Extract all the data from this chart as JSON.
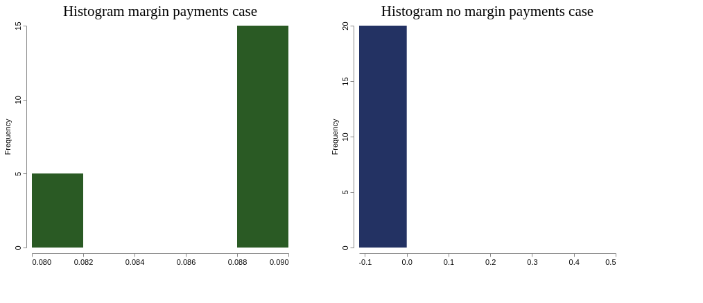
{
  "chart_data": [
    {
      "type": "histogram",
      "title": "Histogram margin payments case",
      "ylabel": "Frequency",
      "color": "#2a5a24",
      "bins": [
        0.08,
        0.082,
        0.084,
        0.086,
        0.088,
        0.09
      ],
      "values": [
        5,
        0,
        0,
        0,
        15
      ],
      "xlim": [
        0.08,
        0.09
      ],
      "ylim": [
        0,
        15
      ],
      "xticks": [
        {
          "value": 0.08,
          "label": "0.080"
        },
        {
          "value": 0.082,
          "label": "0.082"
        },
        {
          "value": 0.084,
          "label": "0.084"
        },
        {
          "value": 0.086,
          "label": "0.086"
        },
        {
          "value": 0.088,
          "label": "0.088"
        },
        {
          "value": 0.09,
          "label": "0.090"
        }
      ],
      "yticks": [
        0,
        5,
        10,
        15
      ]
    },
    {
      "type": "histogram",
      "title": "Histogram no margin payments case",
      "ylabel": "Frequency",
      "color": "#233263",
      "bins": [
        -0.114,
        0.0
      ],
      "values": [
        20
      ],
      "xlim": [
        -0.114,
        0.5
      ],
      "ylim": [
        0,
        20
      ],
      "xticks": [
        {
          "value": -0.1,
          "label": "-0.1"
        },
        {
          "value": 0.0,
          "label": "0.0"
        },
        {
          "value": 0.1,
          "label": "0.1"
        },
        {
          "value": 0.2,
          "label": "0.2"
        },
        {
          "value": 0.3,
          "label": "0.3"
        },
        {
          "value": 0.4,
          "label": "0.4"
        },
        {
          "value": 0.5,
          "label": "0.5"
        }
      ],
      "yticks": [
        0,
        5,
        10,
        15,
        20
      ]
    }
  ]
}
